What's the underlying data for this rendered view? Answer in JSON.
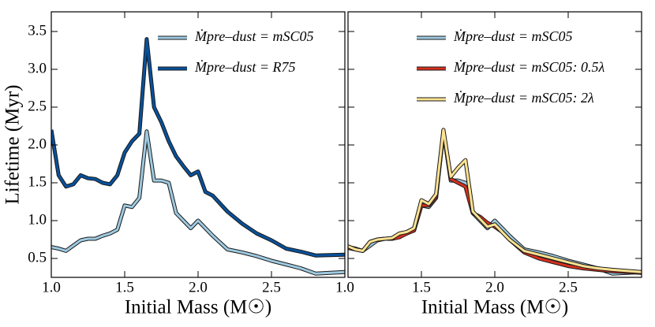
{
  "chart_data": [
    {
      "type": "line",
      "ylabel": "Lifetime (Myr)",
      "xlabel": "Initial Mass (M☉)",
      "x": [
        1.0,
        1.05,
        1.1,
        1.15,
        1.2,
        1.25,
        1.3,
        1.35,
        1.4,
        1.45,
        1.5,
        1.55,
        1.6,
        1.65,
        1.7,
        1.75,
        1.8,
        1.85,
        1.9,
        1.95,
        2.0,
        2.05,
        2.1,
        2.2,
        2.3,
        2.4,
        2.5,
        2.6,
        2.7,
        2.8,
        3.0
      ],
      "series": [
        {
          "name": "Ṁpre–dust = mSC05",
          "color": "#9ecae1",
          "values": [
            0.65,
            0.63,
            0.6,
            0.67,
            0.74,
            0.76,
            0.76,
            0.8,
            0.83,
            0.88,
            1.2,
            1.18,
            1.3,
            2.18,
            1.53,
            1.53,
            1.5,
            1.1,
            1.0,
            0.9,
            1.0,
            0.9,
            0.8,
            0.62,
            0.58,
            0.53,
            0.47,
            0.42,
            0.37,
            0.3,
            0.32
          ]
        },
        {
          "name": "Ṁpre–dust = R75",
          "color": "#08519c",
          "values": [
            2.2,
            1.6,
            1.45,
            1.48,
            1.6,
            1.56,
            1.55,
            1.5,
            1.48,
            1.6,
            1.9,
            2.05,
            2.15,
            3.4,
            2.5,
            2.3,
            2.05,
            1.85,
            1.72,
            1.6,
            1.65,
            1.38,
            1.33,
            1.12,
            0.96,
            0.83,
            0.74,
            0.63,
            0.59,
            0.54,
            0.55
          ]
        }
      ],
      "xlim": [
        1.0,
        3.0
      ],
      "ylim": [
        0.25,
        3.76
      ],
      "xticks": [
        {
          "value": 1.0,
          "label": "1.0"
        },
        1.5,
        {
          "value": 2.0,
          "label": "2.0"
        },
        2.5
      ],
      "yticks": [
        0.5,
        {
          "value": 1.0,
          "label": "1.0"
        },
        1.5,
        {
          "value": 2.0,
          "label": "2.0"
        },
        2.5,
        {
          "value": 3.0,
          "label": "3.0"
        },
        3.5
      ],
      "legend": "upper right"
    },
    {
      "type": "line",
      "xlabel": "Initial Mass (M☉)",
      "x": [
        1.0,
        1.05,
        1.1,
        1.15,
        1.2,
        1.25,
        1.3,
        1.35,
        1.4,
        1.45,
        1.5,
        1.55,
        1.6,
        1.65,
        1.7,
        1.75,
        1.8,
        1.85,
        1.9,
        1.95,
        2.0,
        2.05,
        2.1,
        2.2,
        2.3,
        2.4,
        2.5,
        2.6,
        2.7,
        2.8,
        3.0
      ],
      "series": [
        {
          "name": "Ṁpre–dust = mSC05",
          "color": "#9ecae1",
          "values": [
            0.65,
            0.63,
            0.6,
            0.67,
            0.74,
            0.76,
            0.76,
            0.8,
            0.83,
            0.88,
            1.2,
            1.18,
            1.3,
            2.18,
            1.53,
            1.53,
            1.5,
            1.1,
            1.0,
            0.9,
            1.0,
            0.9,
            0.8,
            0.62,
            0.58,
            0.53,
            0.47,
            0.42,
            0.37,
            0.3,
            0.32
          ]
        },
        {
          "name": "Ṁpre–dust = mSC05: 0.5λ",
          "color": "#d7301f",
          "values": [
            0.64,
            0.62,
            0.6,
            0.72,
            0.75,
            0.76,
            0.76,
            0.78,
            0.83,
            0.87,
            1.2,
            1.2,
            1.32,
            2.18,
            1.55,
            1.5,
            1.45,
            1.1,
            1.05,
            0.97,
            0.92,
            0.85,
            0.75,
            0.58,
            0.5,
            0.45,
            0.4,
            0.37,
            0.35,
            0.33,
            0.31
          ]
        },
        {
          "name": "Ṁpre–dust = mSC05: 2λ",
          "color": "#fee391",
          "values": [
            0.66,
            0.62,
            0.6,
            0.72,
            0.75,
            0.76,
            0.77,
            0.83,
            0.85,
            0.9,
            1.27,
            1.22,
            1.35,
            2.2,
            1.58,
            1.7,
            1.8,
            1.12,
            1.02,
            0.92,
            0.95,
            0.85,
            0.75,
            0.6,
            0.55,
            0.5,
            0.45,
            0.4,
            0.37,
            0.35,
            0.32
          ]
        }
      ],
      "xlim": [
        1.0,
        3.0
      ],
      "ylim": [
        0.25,
        3.76
      ],
      "xticks": [
        {
          "value": 1.0,
          "label": "1.0"
        },
        1.5,
        {
          "value": 2.0,
          "label": "2.0"
        },
        2.5
      ],
      "legend": "upper right"
    }
  ]
}
